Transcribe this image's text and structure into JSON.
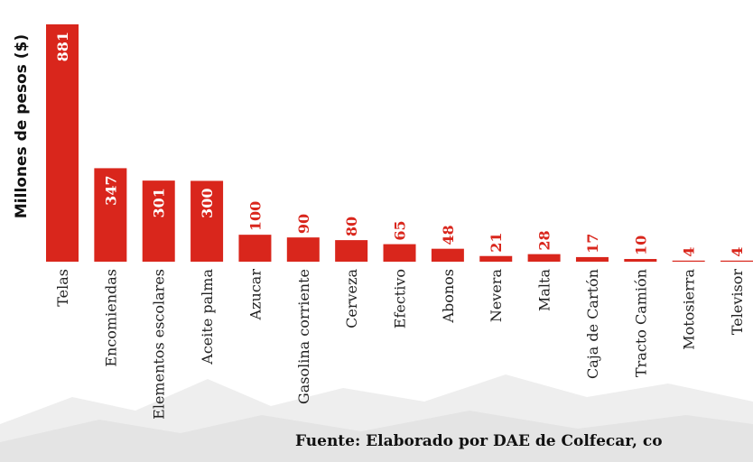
{
  "chart_data": {
    "type": "bar",
    "y_label": "Millones de pesos ($)",
    "categories": [
      "Telas",
      "Encomiendas",
      "Elementos escolares",
      "Aceite palma",
      "Azucar",
      "Gasolina corriente",
      "Cerveza",
      "Efectivo",
      "Abonos",
      "Nevera",
      "Malta",
      "Caja de Cartón",
      "Tracto Camión",
      "Motosierra",
      "Televisor"
    ],
    "values": [
      881,
      347,
      301,
      300,
      100,
      90,
      80,
      65,
      48,
      21,
      28,
      17,
      10,
      4,
      4
    ],
    "color": "#d9261c",
    "source": "Fuente: Elaborado por DAE de Colfecar, co"
  }
}
